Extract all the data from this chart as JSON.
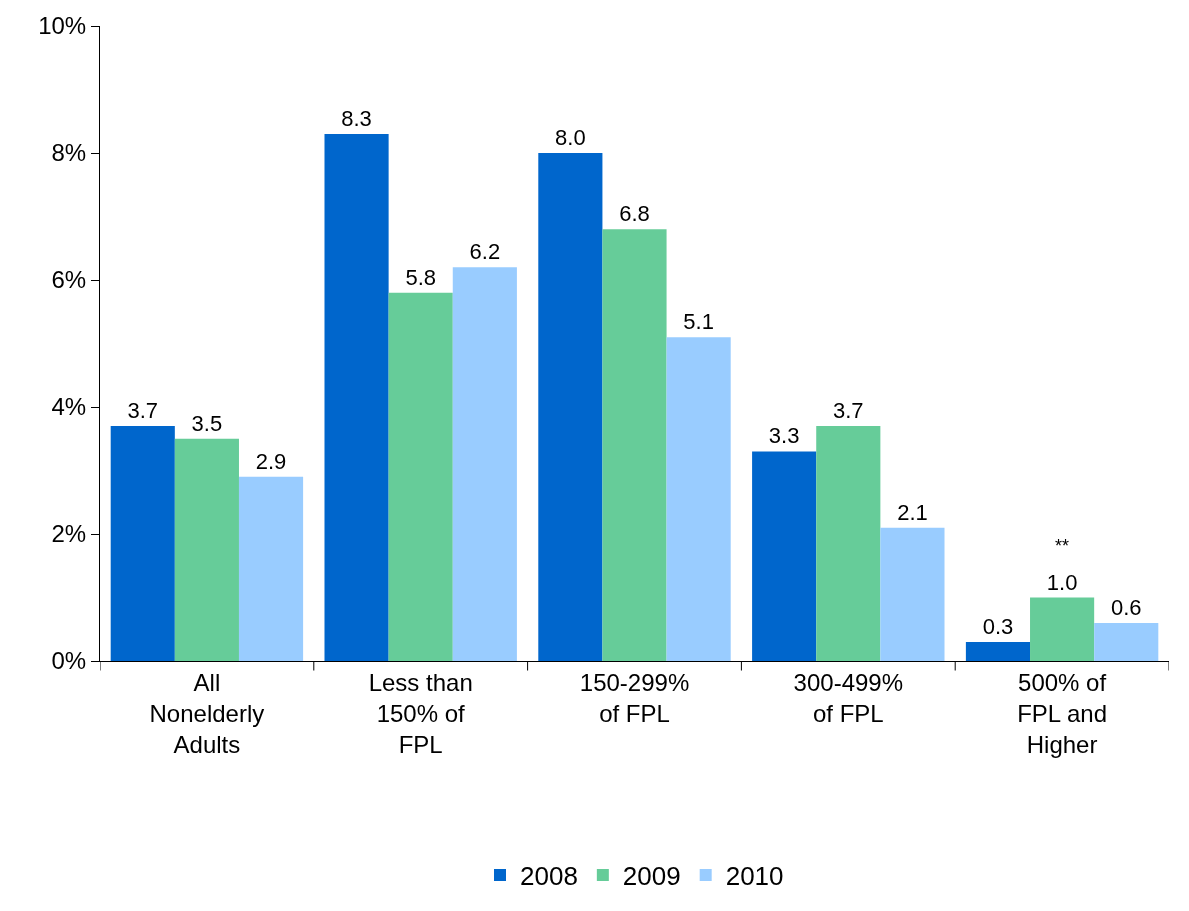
{
  "chart_data": {
    "type": "bar",
    "categories": [
      "All Nonelderly Adults",
      "Less than 150% of FPL",
      "150-299% of FPL",
      "300-499% of FPL",
      "500% of FPL and Higher"
    ],
    "series": [
      {
        "name": "2008",
        "color": "#0066cc",
        "values": [
          3.7,
          8.3,
          8.0,
          3.3,
          0.3
        ],
        "value_labels": [
          "3.7",
          "8.3",
          "8.0",
          "3.3",
          "0.3"
        ]
      },
      {
        "name": "2009",
        "color": "#66cc99",
        "values": [
          3.5,
          5.8,
          6.8,
          3.7,
          1.0
        ],
        "value_labels": [
          "3.5",
          "5.8",
          "6.8",
          "3.7",
          "1.0"
        ]
      },
      {
        "name": "2010",
        "color": "#99ccff",
        "values": [
          2.9,
          6.2,
          5.1,
          2.1,
          0.6
        ],
        "value_labels": [
          "2.9",
          "6.2",
          "5.1",
          "2.1",
          "0.6"
        ]
      }
    ],
    "ylim": [
      0,
      10
    ],
    "yticks": [
      {
        "value": 0,
        "label": "0%"
      },
      {
        "value": 2,
        "label": "2%"
      },
      {
        "value": 4,
        "label": "4%"
      },
      {
        "value": 6,
        "label": "6%"
      },
      {
        "value": 8,
        "label": "8%"
      },
      {
        "value": 10,
        "label": "10%"
      }
    ],
    "grid": false,
    "legend": "bottom",
    "annotations": [
      {
        "text": "**",
        "x": "500% of FPL and Higher",
        "y": 1.0
      }
    ]
  }
}
